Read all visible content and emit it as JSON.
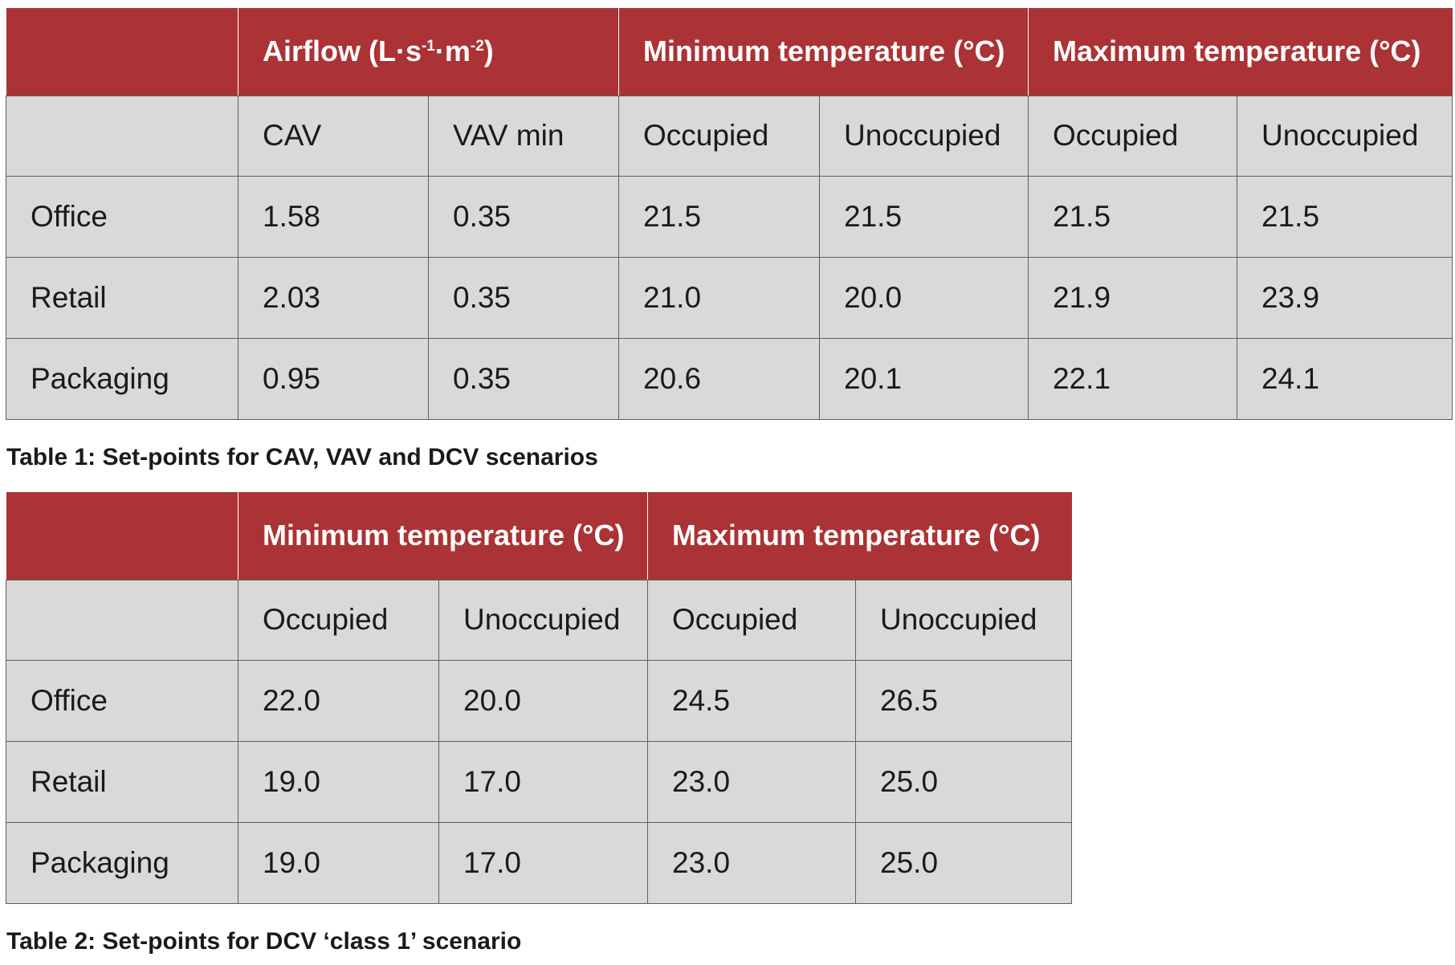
{
  "table1": {
    "group_headers": {
      "airflow_label": "Airflow (L·s",
      "airflow_sup1": "-1",
      "airflow_mid": "·m",
      "airflow_sup2": "-2",
      "airflow_end": ")",
      "min_temp": "Minimum temperature (°C)",
      "max_temp": "Maximum temperature (°C)"
    },
    "sub_headers": [
      "CAV",
      "VAV min",
      "Occupied",
      "Unoccupied",
      "Occupied",
      "Unoccupied"
    ],
    "rows": [
      {
        "label": "Office",
        "values": [
          "1.58",
          "0.35",
          "21.5",
          "21.5",
          "21.5",
          "21.5"
        ]
      },
      {
        "label": "Retail",
        "values": [
          "2.03",
          "0.35",
          "21.0",
          "20.0",
          "21.9",
          "23.9"
        ]
      },
      {
        "label": "Packaging",
        "values": [
          "0.95",
          "0.35",
          "20.6",
          "20.1",
          "22.1",
          "24.1"
        ]
      }
    ],
    "caption": "Table 1: Set-points for CAV, VAV and DCV scenarios"
  },
  "table2": {
    "group_headers": {
      "min_temp": "Minimum temperature (°C)",
      "max_temp": "Maximum temperature (°C)"
    },
    "sub_headers": [
      "Occupied",
      "Unoccupied",
      "Occupied",
      "Unoccupied"
    ],
    "rows": [
      {
        "label": "Office",
        "values": [
          "22.0",
          "20.0",
          "24.5",
          "26.5"
        ]
      },
      {
        "label": "Retail",
        "values": [
          "19.0",
          "17.0",
          "23.0",
          "25.0"
        ]
      },
      {
        "label": "Packaging",
        "values": [
          "19.0",
          "17.0",
          "23.0",
          "25.0"
        ]
      }
    ],
    "caption": "Table 2: Set-points for DCV ‘class 1’ scenario"
  },
  "colors": {
    "header_bg": "#ab3235",
    "cell_bg": "#d9d9d9",
    "border": "#5e5e5e"
  }
}
